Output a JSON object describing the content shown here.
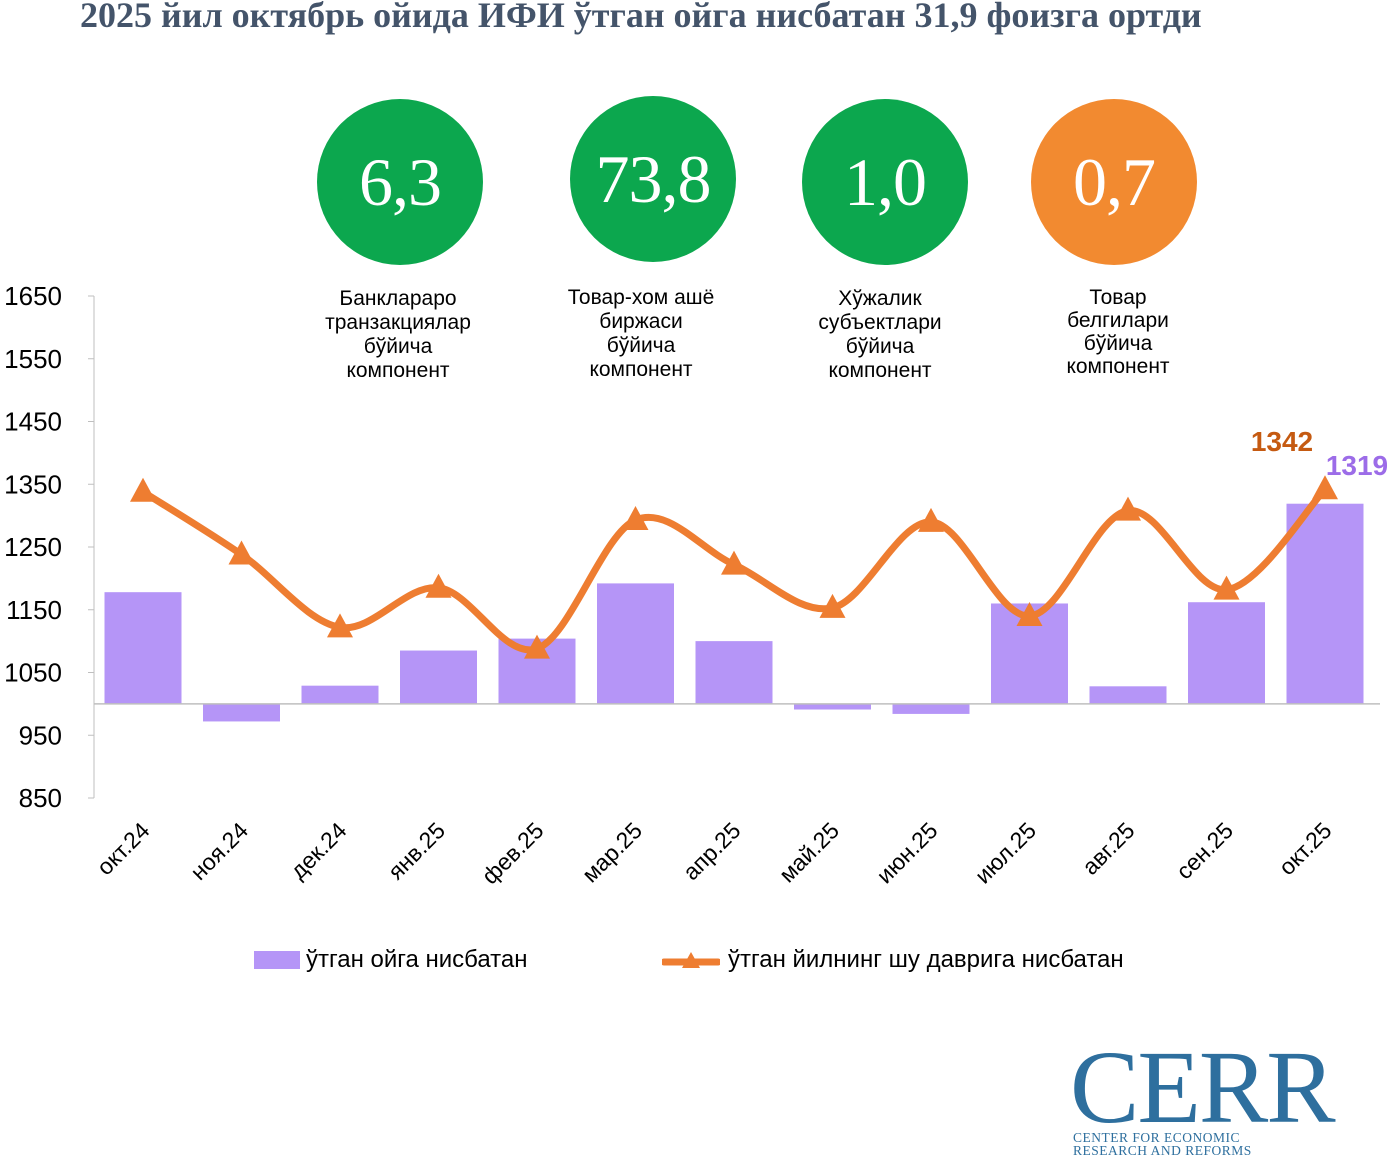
{
  "title": "2025 йил октябрь ойида ИФИ ўтган ойга нисбатан 31,9 фоизга ортди",
  "circles": [
    {
      "value": "6,3",
      "caption": [
        "Банклараро",
        "транзакциялар",
        "бўйича",
        "компонент"
      ],
      "color": "#0ca74e"
    },
    {
      "value": "73,8",
      "caption": [
        "Товар-хом ашё",
        "биржаси",
        "бўйича",
        "компонент"
      ],
      "color": "#0ca74e"
    },
    {
      "value": "1,0",
      "caption": [
        "Хўжалик",
        "субъектлари",
        "бўйича",
        "компонент"
      ],
      "color": "#0ca74e"
    },
    {
      "value": "0,7",
      "caption": [
        "Товар",
        "белгилари",
        "бўйича",
        "компонент"
      ],
      "color": "#f28a30"
    }
  ],
  "chart_data": {
    "type": "bar+line",
    "categories": [
      "окт.24",
      "ноя.24",
      "дек.24",
      "янв.25",
      "фев.25",
      "мар.25",
      "апр.25",
      "май.25",
      "июн.25",
      "июл.25",
      "авг.25",
      "сен.25",
      "окт.25"
    ],
    "series": [
      {
        "name": "ўтган ойга нисбатан",
        "type": "bar",
        "color": "#b595f7",
        "values": [
          1178,
          972,
          1029,
          1085,
          1104,
          1192,
          1100,
          991,
          984,
          1160,
          1028,
          1162,
          1319
        ]
      },
      {
        "name": "ўтган йилнинг шу даврига нисбатан",
        "type": "line",
        "color": "#ee7d31",
        "values": [
          1338,
          1238,
          1122,
          1185,
          1088,
          1293,
          1222,
          1153,
          1290,
          1140,
          1308,
          1182,
          1342
        ]
      }
    ],
    "baseline": 1000,
    "ylim": [
      850,
      1650
    ],
    "yticks": [
      850,
      950,
      1050,
      1150,
      1250,
      1350,
      1450,
      1550,
      1650
    ],
    "data_labels": [
      {
        "series": 1,
        "index": 12,
        "text": "1342",
        "color": "#c55a11"
      },
      {
        "series": 0,
        "index": 12,
        "text": "1319",
        "color": "#9c6ce8"
      }
    ]
  },
  "legend": [
    {
      "label": "ўтган ойга нисбатан"
    },
    {
      "label": "ўтган йилнинг шу даврига нисбатан"
    }
  ],
  "logo": {
    "text": "CERR",
    "sub1": "CENTER FOR ECONOMIC",
    "sub2": "RESEARCH AND REFORMS"
  }
}
